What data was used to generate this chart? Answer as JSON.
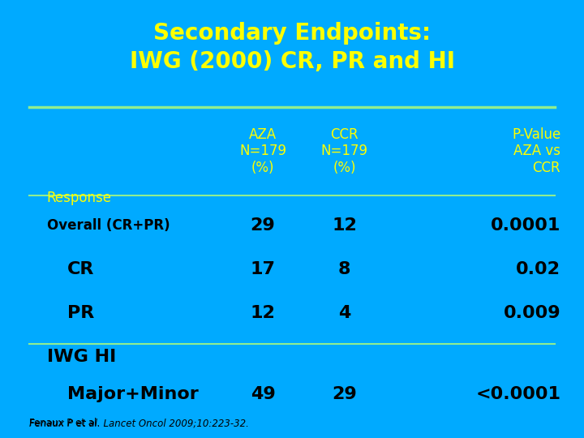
{
  "title_line1": "Secondary Endpoints:",
  "title_line2": "IWG (2000) CR, PR and HI",
  "title_color": "#FFFF00",
  "background_color": "#00AAFF",
  "header_col1": "AZA\nN=179\n(%)",
  "header_col2": "CCR\nN=179\n(%)",
  "header_col3": "P-Value\nAZA vs\nCCR",
  "header_color": "#FFFF00",
  "row_label_header": "Response",
  "rows": [
    {
      "label": "Overall (CR+PR)",
      "aza": "29",
      "ccr": "12",
      "pval": "0.0001",
      "bold": true,
      "indent": false,
      "label_fs": 12
    },
    {
      "label": "CR",
      "aza": "17",
      "ccr": "8",
      "pval": "0.02",
      "bold": false,
      "indent": true,
      "label_fs": 16
    },
    {
      "label": "PR",
      "aza": "12",
      "ccr": "4",
      "pval": "0.009",
      "bold": false,
      "indent": true,
      "label_fs": 16
    }
  ],
  "section_label": "IWG HI",
  "rows2": [
    {
      "label": "Major+Minor",
      "aza": "49",
      "ccr": "29",
      "pval": "<0.0001",
      "bold": false,
      "indent": true,
      "label_fs": 16
    }
  ],
  "data_color": "#000000",
  "line_color": "#90EE90",
  "footnote_plain": "Fenaux P et al. ",
  "footnote_italic": "Lancet Oncol",
  "footnote_rest": " 2009;10:223-32.",
  "footnote_color": "#000000"
}
